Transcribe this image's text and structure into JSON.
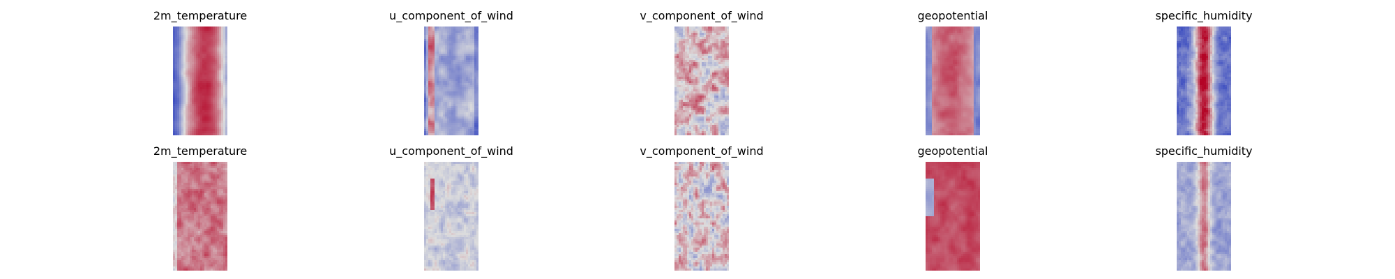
{
  "chart_data": {
    "type": "heatmap",
    "colormap": "coolwarm",
    "colors": {
      "low": "#3b4cc0",
      "mid": "#dddddd",
      "high": "#b40426"
    },
    "axes_visible": false,
    "rows": [
      [
        {
          "title": "2m_temperature",
          "pattern": "temp_row1"
        },
        {
          "title": "u_component_of_wind",
          "pattern": "uwind_row1"
        },
        {
          "title": "v_component_of_wind",
          "pattern": "vwind_row1"
        },
        {
          "title": "geopotential",
          "pattern": "geo_row1"
        },
        {
          "title": "specific_humidity",
          "pattern": "hum_row1"
        }
      ],
      [
        {
          "title": "2m_temperature",
          "pattern": "temp_row2"
        },
        {
          "title": "u_component_of_wind",
          "pattern": "uwind_row2"
        },
        {
          "title": "v_component_of_wind",
          "pattern": "vwind_row2"
        },
        {
          "title": "geopotential",
          "pattern": "geo_row2"
        },
        {
          "title": "specific_humidity",
          "pattern": "hum_row2"
        }
      ]
    ]
  }
}
